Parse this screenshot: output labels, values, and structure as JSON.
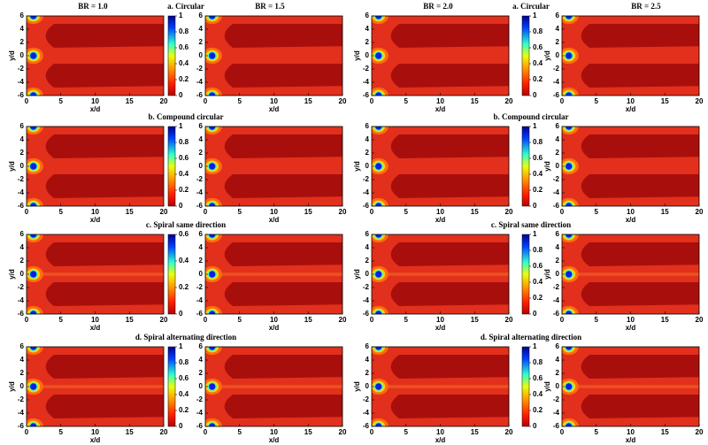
{
  "figure": {
    "br_labels": [
      "BR = 1.0",
      "BR = 1.5",
      "BR = 2.0",
      "BR = 2.5"
    ],
    "row_titles": [
      "a. Circular",
      "b. Compound circular",
      "c. Spiral same direction",
      "d. Spiral alternating direction"
    ]
  },
  "chart_data": [
    {
      "type": "heatmap",
      "xlabel": "x/d",
      "ylabel": "y/d",
      "xlim": [
        0,
        20
      ],
      "xticks": [
        0,
        5,
        10,
        15,
        20
      ],
      "ylim": [
        -6,
        6
      ],
      "yticks": [
        -6,
        -4,
        -2,
        0,
        2,
        4,
        6
      ],
      "colorbar": {
        "lim": [
          0,
          1
        ],
        "ticks": [
          0,
          0.2,
          0.4,
          0.6,
          0.8,
          1
        ]
      }
    },
    {
      "type": "heatmap",
      "xlabel": "x/d",
      "xlim": [
        0,
        20
      ],
      "xticks": [
        0,
        5,
        10,
        15,
        20
      ],
      "ylim": [
        -6,
        6
      ],
      "yticks": [
        -6,
        -4,
        -2,
        0,
        2,
        4,
        6
      ]
    },
    {
      "type": "heatmap",
      "xlabel": "x/d",
      "ylabel": "y/d",
      "xlim": [
        0,
        20
      ],
      "xticks": [
        0,
        5,
        10,
        15,
        20
      ],
      "ylim": [
        -6,
        6
      ],
      "yticks": [
        -6,
        -4,
        -2,
        0,
        2,
        4,
        6
      ],
      "colorbar": {
        "lim": [
          0,
          1
        ],
        "ticks": [
          0,
          0.2,
          0.4,
          0.6,
          0.8,
          1
        ]
      }
    },
    {
      "type": "heatmap",
      "xlabel": "x/d",
      "ylabel": "y/d",
      "xlim": [
        0,
        20
      ],
      "xticks": [
        0,
        5,
        10,
        15,
        20
      ],
      "ylim": [
        -6,
        6
      ],
      "yticks": [
        -6,
        -4,
        -2,
        0,
        2,
        4,
        6
      ]
    },
    {
      "type": "heatmap",
      "xlabel": "x/d",
      "ylabel": "y/d",
      "xlim": [
        0,
        20
      ],
      "xticks": [
        0,
        5,
        10,
        15,
        20
      ],
      "ylim": [
        -6,
        6
      ],
      "yticks": [
        -6,
        -4,
        -2,
        0,
        2,
        4,
        6
      ],
      "colorbar": {
        "lim": [
          0,
          1
        ],
        "ticks": [
          0,
          0.2,
          0.4,
          0.6,
          0.8,
          1
        ]
      }
    },
    {
      "type": "heatmap",
      "xlabel": "x/d",
      "xlim": [
        0,
        20
      ],
      "xticks": [
        0,
        5,
        10,
        15,
        20
      ],
      "ylim": [
        -6,
        6
      ],
      "yticks": [
        -6,
        -4,
        -2,
        0,
        2,
        4,
        6
      ]
    },
    {
      "type": "heatmap",
      "xlabel": "x/d",
      "ylabel": "y/d",
      "xlim": [
        0,
        20
      ],
      "xticks": [
        0,
        5,
        10,
        15,
        20
      ],
      "ylim": [
        -6,
        6
      ],
      "yticks": [
        -6,
        -4,
        -2,
        0,
        2,
        4,
        6
      ],
      "colorbar": {
        "lim": [
          0,
          1
        ],
        "ticks": [
          0,
          0.2,
          0.4,
          0.6,
          0.8,
          1
        ]
      }
    },
    {
      "type": "heatmap",
      "xlabel": "x/d",
      "ylabel": "y/d",
      "xlim": [
        0,
        20
      ],
      "xticks": [
        0,
        5,
        10,
        15,
        20
      ],
      "ylim": [
        -6,
        6
      ],
      "yticks": [
        -6,
        -4,
        -2,
        0,
        2,
        4,
        6
      ]
    },
    {
      "type": "heatmap",
      "xlabel": "x/d",
      "ylabel": "y/d",
      "xlim": [
        0,
        20
      ],
      "xticks": [
        0,
        5,
        10,
        15,
        20
      ],
      "ylim": [
        -6,
        6
      ],
      "yticks": [
        -6,
        -4,
        -2,
        0,
        2,
        4,
        6
      ],
      "colorbar": {
        "lim": [
          0,
          0.6
        ],
        "ticks": [
          0,
          0.2,
          0.4,
          0.6
        ]
      }
    },
    {
      "type": "heatmap",
      "xlabel": "x/d",
      "xlim": [
        0,
        20
      ],
      "xticks": [
        0,
        5,
        10,
        15,
        20
      ],
      "ylim": [
        -6,
        6
      ],
      "yticks": [
        -6,
        -4,
        -2,
        0,
        2,
        4,
        6
      ]
    },
    {
      "type": "heatmap",
      "xlabel": "x/d",
      "ylabel": "y/d",
      "xlim": [
        0,
        20
      ],
      "xticks": [
        0,
        5,
        10,
        15,
        20
      ],
      "ylim": [
        -6,
        6
      ],
      "yticks": [
        -6,
        -4,
        -2,
        0,
        2,
        4,
        6
      ],
      "colorbar": {
        "lim": [
          0,
          1
        ],
        "ticks": [
          0,
          0.2,
          0.4,
          0.6,
          0.8,
          1
        ]
      }
    },
    {
      "type": "heatmap",
      "xlabel": "x/d",
      "ylabel": "y/d",
      "xlim": [
        0,
        20
      ],
      "xticks": [
        0,
        5,
        10,
        15,
        20
      ],
      "ylim": [
        -6,
        6
      ],
      "yticks": [
        -6,
        -4,
        -2,
        0,
        2,
        4,
        6
      ]
    },
    {
      "type": "heatmap",
      "xlabel": "x/d",
      "ylabel": "y/d",
      "xlim": [
        0,
        20
      ],
      "xticks": [
        0,
        5,
        10,
        15,
        20
      ],
      "ylim": [
        -6,
        6
      ],
      "yticks": [
        -6,
        -4,
        -2,
        0,
        2,
        4,
        6
      ],
      "colorbar": {
        "lim": [
          0,
          1
        ],
        "ticks": [
          0,
          0.2,
          0.4,
          0.6,
          0.8,
          1
        ]
      }
    },
    {
      "type": "heatmap",
      "xlabel": "x/d",
      "xlim": [
        0,
        20
      ],
      "xticks": [
        0,
        5,
        10,
        15,
        20
      ],
      "ylim": [
        -6,
        6
      ],
      "yticks": [
        -6,
        -4,
        -2,
        0,
        2,
        4,
        6
      ]
    },
    {
      "type": "heatmap",
      "xlabel": "x/d",
      "ylabel": "y/d",
      "xlim": [
        0,
        20
      ],
      "xticks": [
        0,
        5,
        10,
        15,
        20
      ],
      "ylim": [
        -6,
        6
      ],
      "yticks": [
        -6,
        -4,
        -2,
        0,
        2,
        4,
        6
      ],
      "colorbar": {
        "lim": [
          0,
          1
        ],
        "ticks": [
          0,
          0.2,
          0.4,
          0.6,
          0.8,
          1
        ]
      }
    },
    {
      "type": "heatmap",
      "xlabel": "x/d",
      "ylabel": "y/d",
      "xlim": [
        0,
        20
      ],
      "xticks": [
        0,
        5,
        10,
        15,
        20
      ],
      "ylim": [
        -6,
        6
      ],
      "yticks": [
        -6,
        -4,
        -2,
        0,
        2,
        4,
        6
      ]
    }
  ]
}
